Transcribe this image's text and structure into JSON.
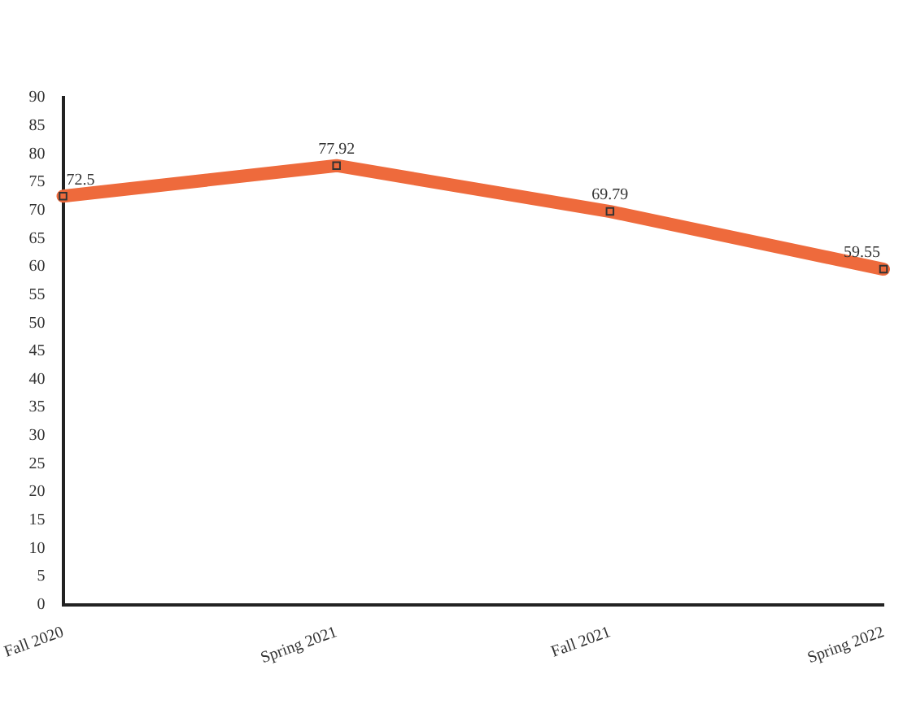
{
  "chart_data": {
    "type": "line",
    "categories": [
      "Fall 2020",
      "Spring 2021",
      "Fall 2021",
      "Spring 2022"
    ],
    "series": [
      {
        "color": "#ee6a3c",
        "values": [
          72.5,
          77.92,
          69.79,
          59.55
        ]
      }
    ],
    "ylim": [
      0,
      90
    ],
    "yticks": [
      0,
      5,
      10,
      15,
      20,
      25,
      30,
      35,
      40,
      45,
      50,
      55,
      60,
      65,
      70,
      75,
      80,
      85,
      90
    ],
    "grid": false,
    "legend": false,
    "marker": "square",
    "line_style": "solid",
    "data_labels": true
  }
}
